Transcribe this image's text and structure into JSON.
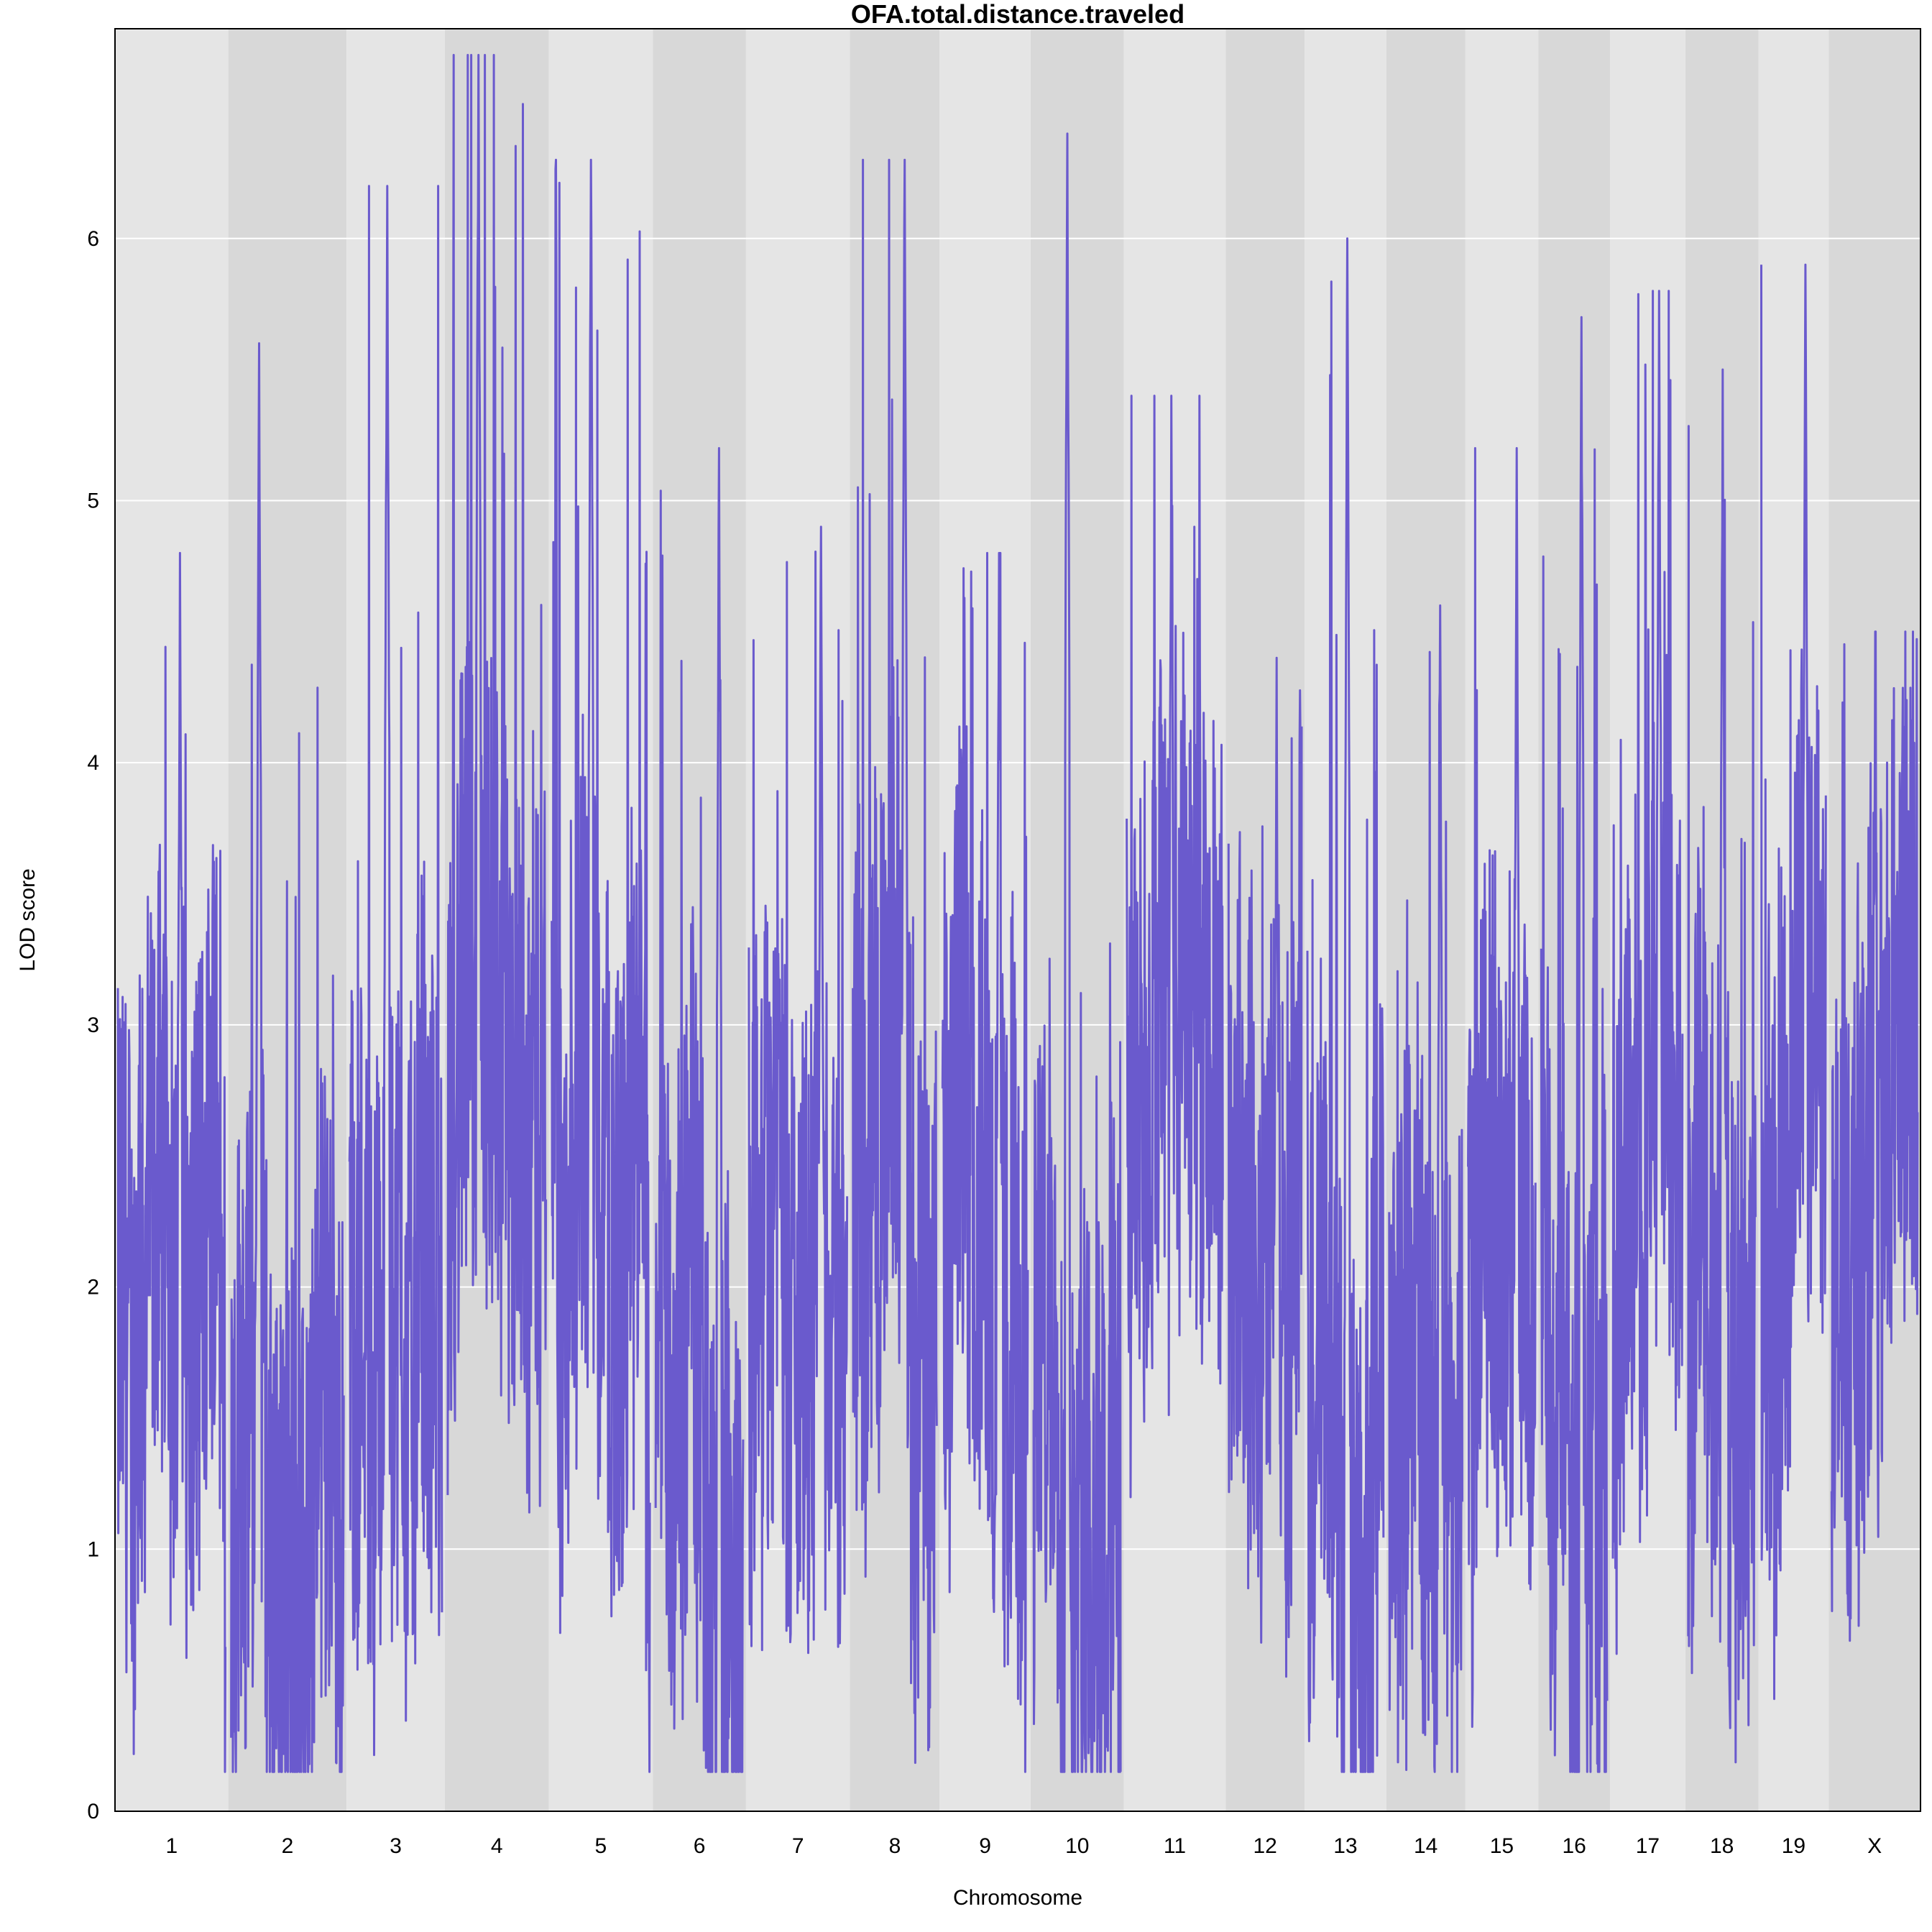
{
  "chart_data": {
    "type": "line",
    "title": "OFA.total.distance.traveled",
    "xlabel": "Chromosome",
    "ylabel": "LOD score",
    "ylim": [
      0,
      6.8
    ],
    "yticks": [
      0,
      1,
      2,
      3,
      4,
      5,
      6
    ],
    "grid": true,
    "line_color": "#6A5ACD",
    "band_colors": [
      "#E5E5E5",
      "#D8D8D8"
    ],
    "chromosomes": [
      {
        "label": "1",
        "peak": 4.8
      },
      {
        "label": "2",
        "peak": 5.6
      },
      {
        "label": "3",
        "peak": 6.2
      },
      {
        "label": "4",
        "peak": 6.7
      },
      {
        "label": "5",
        "peak": 6.3
      },
      {
        "label": "6",
        "peak": 5.2
      },
      {
        "label": "7",
        "peak": 4.9
      },
      {
        "label": "8",
        "peak": 6.3
      },
      {
        "label": "9",
        "peak": 4.8
      },
      {
        "label": "10",
        "peak": 6.4
      },
      {
        "label": "11",
        "peak": 5.4
      },
      {
        "label": "12",
        "peak": 4.4
      },
      {
        "label": "13",
        "peak": 6.0
      },
      {
        "label": "14",
        "peak": 4.6
      },
      {
        "label": "15",
        "peak": 5.2
      },
      {
        "label": "16",
        "peak": 5.7
      },
      {
        "label": "17",
        "peak": 5.8
      },
      {
        "label": "18",
        "peak": 5.5
      },
      {
        "label": "19",
        "peak": 5.9
      },
      {
        "label": "X",
        "peak": 4.5
      }
    ]
  }
}
